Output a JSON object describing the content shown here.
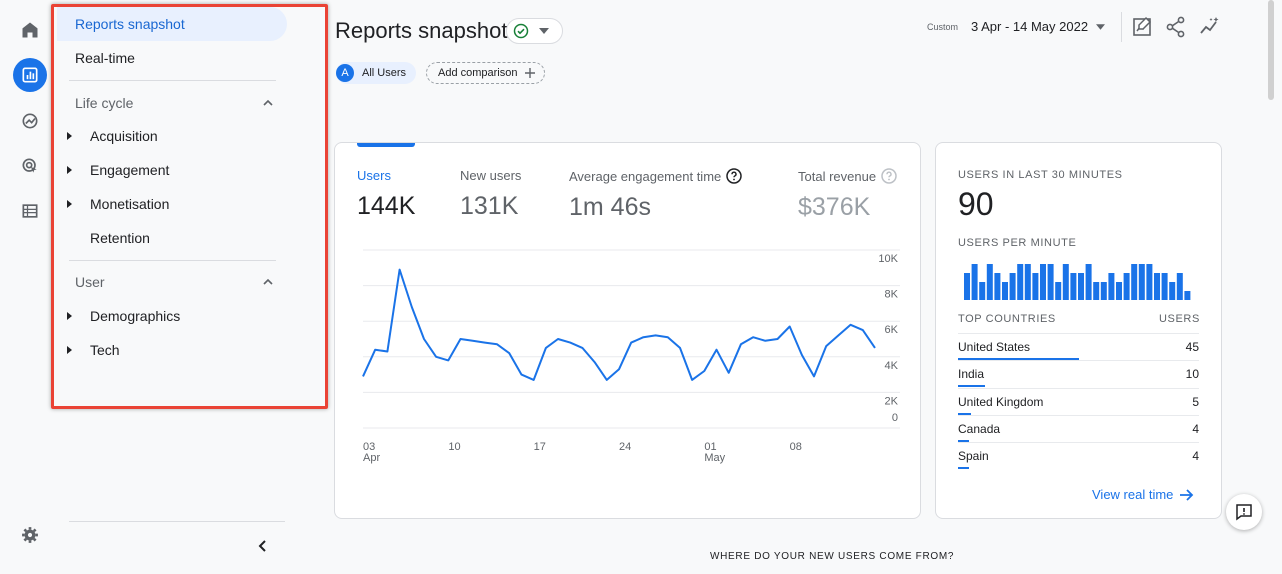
{
  "colors": {
    "accent": "#1a73e8",
    "highlight": "#ea4335"
  },
  "rail": {
    "items": [
      {
        "name": "home",
        "icon": "home-icon"
      },
      {
        "name": "reports",
        "icon": "bar-chart-icon",
        "active": true
      },
      {
        "name": "explore",
        "icon": "explore-icon"
      },
      {
        "name": "advertising",
        "icon": "target-cursor-icon"
      },
      {
        "name": "configure",
        "icon": "list-icon"
      }
    ],
    "settings_icon": "gear-icon"
  },
  "nav": {
    "reports_snapshot": "Reports snapshot",
    "realtime": "Real-time",
    "lifecycle": {
      "label": "Life cycle",
      "items": [
        "Acquisition",
        "Engagement",
        "Monetisation",
        "Retention"
      ]
    },
    "user": {
      "label": "User",
      "items": [
        "Demographics",
        "Tech"
      ]
    }
  },
  "header": {
    "title": "Reports snapshot",
    "date_label": "Custom",
    "date_range": "3 Apr - 14 May 2022",
    "segment_letter": "A",
    "segment": "All Users",
    "add_comparison": "Add comparison"
  },
  "metrics": [
    {
      "label": "Users",
      "value": "144K",
      "active": true
    },
    {
      "label": "New users",
      "value": "131K"
    },
    {
      "label": "Average engagement time",
      "value": "1m 46s",
      "help": true
    },
    {
      "label": "Total revenue",
      "value": "$376K",
      "help": true
    }
  ],
  "chart_data": {
    "type": "line",
    "x_tick_labels": [
      "03",
      "10",
      "17",
      "24",
      "01",
      "08"
    ],
    "x_month_labels": [
      "Apr",
      "May"
    ],
    "y_tick_labels": [
      "10K",
      "8K",
      "6K",
      "4K",
      "2K",
      "0"
    ],
    "ylim": [
      0,
      10000
    ],
    "grid": true,
    "series": [
      {
        "values": [
          2900,
          4400,
          4300,
          8900,
          6800,
          5000,
          4000,
          3800,
          5000,
          4900,
          4800,
          4700,
          4200,
          3000,
          2700,
          4500,
          5000,
          4800,
          4500,
          3700,
          2700,
          3300,
          4800,
          5100,
          5200,
          5100,
          4500,
          2700,
          3200,
          4400,
          3100,
          4700,
          5100,
          4900,
          5000,
          5700,
          4100,
          2900,
          4600,
          5200,
          5800,
          5500,
          4500
        ]
      }
    ]
  },
  "realtime": {
    "title": "USERS IN LAST 30 MINUTES",
    "count": "90",
    "per_minute_label": "USERS PER MINUTE",
    "per_minute": [
      3,
      4,
      2,
      4,
      3,
      2,
      3,
      4,
      4,
      3,
      4,
      4,
      2,
      4,
      3,
      3,
      4,
      2,
      2,
      3,
      2,
      3,
      4,
      4,
      4,
      3,
      3,
      2,
      3,
      1
    ],
    "countries_header": "TOP COUNTRIES",
    "users_header": "USERS",
    "countries": [
      {
        "name": "United States",
        "value": "45",
        "share": 0.5
      },
      {
        "name": "India",
        "value": "10",
        "share": 0.11
      },
      {
        "name": "United Kingdom",
        "value": "5",
        "share": 0.055
      },
      {
        "name": "Canada",
        "value": "4",
        "share": 0.045
      },
      {
        "name": "Spain",
        "value": "4",
        "share": 0.045
      }
    ],
    "view_link": "View real time"
  },
  "bottom_heading": "WHERE DO YOUR NEW USERS COME FROM?"
}
